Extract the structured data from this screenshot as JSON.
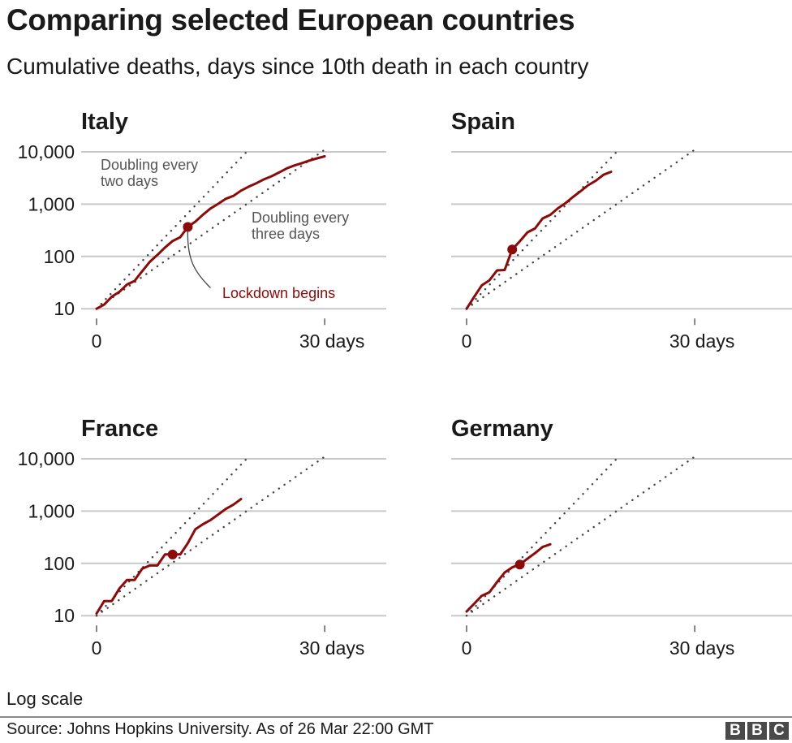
{
  "header": {
    "title": "Comparing selected European countries",
    "subtitle": "Cumulative deaths, days since 10th death in each country"
  },
  "footer": {
    "scale_note": "Log scale",
    "source": "Source: Johns Hopkins University. As of 26 Mar 22:00 GMT",
    "logo_letters": [
      "B",
      "B",
      "C"
    ]
  },
  "colors": {
    "series": "#8b0a0a",
    "guide_dots": "#444444",
    "grid": "#c8c8c8",
    "note_text": "#555555",
    "logo_bg": "#4a4a4a"
  },
  "annotations": {
    "two_day_line1": "Doubling every",
    "two_day_line2": "two days",
    "three_day_line1": "Doubling every",
    "three_day_line2": "three days",
    "lockdown": "Lockdown begins"
  },
  "chart_data": [
    {
      "type": "line",
      "title": "Italy",
      "xlabel": "days since 10th death",
      "ylabel": "Cumulative deaths",
      "yscale": "log",
      "ylim": [
        10,
        10000
      ],
      "xlim": [
        0,
        42
      ],
      "y_ticks": [
        10,
        100,
        1000,
        10000
      ],
      "y_tick_labels": [
        "10",
        "100",
        "1,000",
        "10,000"
      ],
      "x_ticks": [
        0,
        30
      ],
      "x_tick_labels": [
        "0",
        "30 days"
      ],
      "grid": true,
      "lockdown_day": 12,
      "lockdown_value": 366,
      "x": [
        0,
        1,
        2,
        3,
        4,
        5,
        6,
        7,
        8,
        9,
        10,
        11,
        12,
        13,
        14,
        15,
        16,
        17,
        18,
        19,
        20,
        21,
        22,
        23,
        24,
        25,
        26,
        27,
        28,
        29,
        30
      ],
      "y": [
        10,
        12,
        17,
        21,
        29,
        34,
        52,
        79,
        107,
        148,
        197,
        233,
        366,
        463,
        631,
        827,
        1016,
        1266,
        1441,
        1809,
        2158,
        2503,
        2978,
        3405,
        4032,
        4825,
        5476,
        6077,
        6820,
        7503,
        8215
      ]
    },
    {
      "type": "line",
      "title": "Spain",
      "xlabel": "days since 10th death",
      "ylabel": "Cumulative deaths",
      "yscale": "log",
      "ylim": [
        10,
        10000
      ],
      "xlim": [
        0,
        42
      ],
      "y_ticks": [
        10,
        100,
        1000,
        10000
      ],
      "y_tick_labels": [
        "10",
        "100",
        "1,000",
        "10,000"
      ],
      "x_ticks": [
        0,
        30
      ],
      "x_tick_labels": [
        "0",
        "30 days"
      ],
      "grid": true,
      "lockdown_day": 6,
      "lockdown_value": 136,
      "x": [
        0,
        1,
        2,
        3,
        4,
        5,
        6,
        7,
        8,
        9,
        10,
        11,
        12,
        13,
        14,
        15,
        16,
        17,
        18,
        19
      ],
      "y": [
        10,
        17,
        28,
        35,
        54,
        55,
        136,
        195,
        289,
        342,
        533,
        623,
        830,
        1043,
        1375,
        1772,
        2311,
        2808,
        3647,
        4145
      ]
    },
    {
      "type": "line",
      "title": "France",
      "xlabel": "days since 10th death",
      "ylabel": "Cumulative deaths",
      "yscale": "log",
      "ylim": [
        10,
        10000
      ],
      "xlim": [
        0,
        42
      ],
      "y_ticks": [
        10,
        100,
        1000,
        10000
      ],
      "y_tick_labels": [
        "10",
        "100",
        "1,000",
        "10,000"
      ],
      "x_ticks": [
        0,
        30
      ],
      "x_tick_labels": [
        "0",
        "30 days"
      ],
      "grid": true,
      "lockdown_day": 10,
      "lockdown_value": 148,
      "x": [
        0,
        1,
        2,
        3,
        4,
        5,
        6,
        7,
        8,
        9,
        10,
        11,
        12,
        13,
        14,
        15,
        16,
        17,
        18,
        19
      ],
      "y": [
        11,
        19,
        19,
        33,
        48,
        48,
        79,
        91,
        91,
        148,
        148,
        148,
        243,
        450,
        562,
        674,
        860,
        1100,
        1331,
        1696
      ]
    },
    {
      "type": "line",
      "title": "Germany",
      "xlabel": "days since 10th death",
      "ylabel": "Cumulative deaths",
      "yscale": "log",
      "ylim": [
        10,
        10000
      ],
      "xlim": [
        0,
        42
      ],
      "y_ticks": [
        10,
        100,
        1000,
        10000
      ],
      "y_tick_labels": [
        "10",
        "100",
        "1,000",
        "10,000"
      ],
      "x_ticks": [
        0,
        30
      ],
      "x_tick_labels": [
        "0",
        "30 days"
      ],
      "grid": true,
      "lockdown_day": 7,
      "lockdown_value": 95,
      "x": [
        0,
        1,
        2,
        3,
        4,
        5,
        6,
        7,
        8,
        9,
        10,
        11
      ],
      "y": [
        12,
        17,
        24,
        28,
        44,
        67,
        84,
        95,
        123,
        157,
        206,
        232
      ]
    }
  ]
}
